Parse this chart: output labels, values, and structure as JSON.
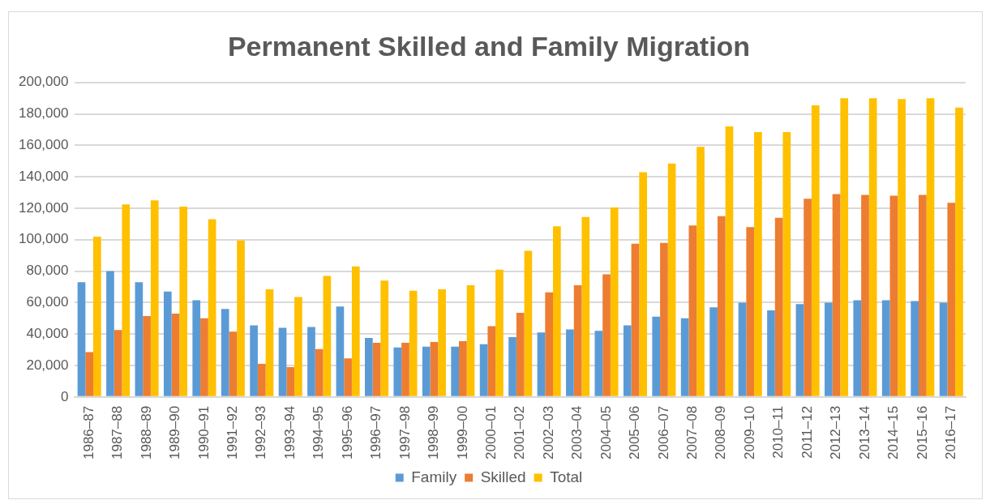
{
  "chart_data": {
    "type": "bar",
    "title": "Permanent Skilled and Family Migration",
    "categories": [
      "1986–87",
      "1987–88",
      "1988–89",
      "1989–90",
      "1990–91",
      "1991–92",
      "1992–93",
      "1993–94",
      "1994–95",
      "1995–96",
      "1996–97",
      "1997–98",
      "1998–99",
      "1999–00",
      "2000–01",
      "2001–02",
      "2002–03",
      "2003–04",
      "2004–05",
      "2005–06",
      "2006–07",
      "2007–08",
      "2008–09",
      "2009–10",
      "2010–11",
      "2011–12",
      "2012–13",
      "2013–14",
      "2014–15",
      "2015–16",
      "2016–17"
    ],
    "series": [
      {
        "name": "Family",
        "color": "#5b9bd5",
        "values": [
          73000,
          80000,
          73000,
          67000,
          61500,
          56000,
          45500,
          44000,
          44500,
          57500,
          37500,
          31500,
          32000,
          32000,
          33500,
          38000,
          41000,
          43000,
          42000,
          45500,
          51000,
          50000,
          57000,
          60000,
          55000,
          59000,
          60000,
          61500,
          61500,
          61000,
          60000
        ]
      },
      {
        "name": "Skilled",
        "color": "#ed7d31",
        "values": [
          28500,
          42500,
          51500,
          53000,
          50000,
          41500,
          21000,
          19000,
          30500,
          24500,
          34500,
          34500,
          35000,
          35500,
          45000,
          53500,
          66500,
          71000,
          78000,
          97500,
          98000,
          109000,
          115000,
          108000,
          114000,
          126000,
          129000,
          128500,
          128000,
          128500,
          123500
        ]
      },
      {
        "name": "Total",
        "color": "#ffc000",
        "values": [
          102000,
          122500,
          125000,
          121000,
          113000,
          99500,
          68500,
          63500,
          77000,
          83000,
          74000,
          67500,
          68500,
          71000,
          81000,
          93000,
          108500,
          114500,
          120500,
          143000,
          148500,
          159000,
          172000,
          168500,
          168500,
          185500,
          190000,
          190000,
          189500,
          190000,
          184000
        ]
      }
    ],
    "ylim": [
      0,
      200000
    ],
    "yticks": [
      0,
      {
        "value": 20000,
        "label": "20,000"
      },
      {
        "value": 40000,
        "label": "40,000"
      },
      {
        "value": 60000,
        "label": "60,000"
      },
      {
        "value": 80000,
        "label": "80,000"
      },
      {
        "value": 100000,
        "label": "100,000"
      },
      {
        "value": 120000,
        "label": "120,000"
      },
      {
        "value": 140000,
        "label": "140,000"
      },
      {
        "value": 160000,
        "label": "160,000"
      },
      {
        "value": 180000,
        "label": "180,000"
      },
      {
        "value": 200000,
        "label": "200,000"
      }
    ],
    "grid": "y",
    "legend": "bottom"
  }
}
